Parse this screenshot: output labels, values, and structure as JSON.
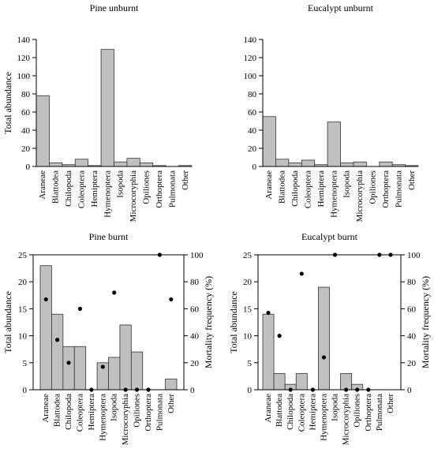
{
  "chart_data": [
    {
      "type": "bar",
      "title": "Pine unburnt",
      "ylabel": "Total abundance",
      "ylim": [
        0,
        140
      ],
      "yticks": [
        0,
        20,
        40,
        60,
        80,
        100,
        120,
        140
      ],
      "categories": [
        "Araneae",
        "Blattodea",
        "Chilopoda",
        "Coleoptera",
        "Hemiptera",
        "Hymenoptera",
        "Isopoda",
        "Microcoryphia",
        "Opiliones",
        "Orthoptera",
        "Pulmonata",
        "Other"
      ],
      "values": [
        78,
        4,
        2,
        8,
        1,
        129,
        5,
        9,
        4,
        1,
        0,
        1
      ]
    },
    {
      "type": "bar",
      "title": "Eucalypt unburnt",
      "ylabel": "",
      "ylim": [
        0,
        140
      ],
      "yticks": [
        0,
        20,
        40,
        60,
        80,
        100,
        120,
        140
      ],
      "categories": [
        "Araneae",
        "Blattodea",
        "Chilopoda",
        "Coleoptera",
        "Hemiptera",
        "Hymenoptera",
        "Isopoda",
        "Microcoryphia",
        "Opiliones",
        "Orthoptera",
        "Pulmonata",
        "Other"
      ],
      "values": [
        55,
        8,
        4,
        7,
        2,
        49,
        4,
        5,
        0,
        5,
        2,
        1
      ]
    },
    {
      "type": "bar",
      "title": "Pine burnt",
      "ylabel": "Total abundance",
      "y2label": "Mortality frequency (%)",
      "ylim": [
        0,
        25
      ],
      "yticks": [
        0,
        5,
        10,
        15,
        20,
        25
      ],
      "y2lim": [
        0,
        100
      ],
      "y2ticks": [
        0,
        20,
        40,
        60,
        80,
        100
      ],
      "categories": [
        "Araneae",
        "Blattodea",
        "Chilopoda",
        "Coleoptera",
        "Hemiptera",
        "Hymenoptera",
        "Isopoda",
        "Microcoryphia",
        "Opiliones",
        "Orthoptera",
        "Pulmonata",
        "Other"
      ],
      "values": [
        23,
        14,
        8,
        8,
        0,
        5,
        6,
        12,
        7,
        0,
        0,
        2
      ],
      "mortality": [
        67,
        37,
        20,
        60,
        0,
        17,
        72,
        0,
        0,
        0,
        100,
        67
      ]
    },
    {
      "type": "bar",
      "title": "Eucalypt burnt",
      "ylabel": "Total abundance",
      "y2label": "Mortality frequency (%)",
      "ylim": [
        0,
        25
      ],
      "yticks": [
        0,
        5,
        10,
        15,
        20,
        25
      ],
      "y2lim": [
        0,
        100
      ],
      "y2ticks": [
        0,
        20,
        40,
        60,
        80,
        100
      ],
      "categories": [
        "Araneae",
        "Blattodea",
        "Chilopoda",
        "Coleoptera",
        "Hemiptera",
        "Hymenoptera",
        "Isopoda",
        "Microcoryphia",
        "Opiliones",
        "Orthoptera",
        "Pulmonata",
        "Other"
      ],
      "values": [
        14,
        3,
        1,
        3,
        0,
        19,
        0,
        3,
        1,
        0,
        0,
        0
      ],
      "mortality": [
        57,
        40,
        0,
        86,
        0,
        24,
        100,
        0,
        0,
        0,
        100,
        100
      ]
    }
  ]
}
